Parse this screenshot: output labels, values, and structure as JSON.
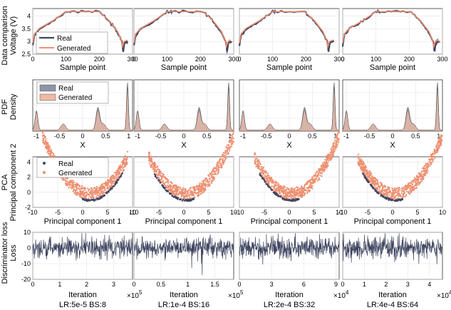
{
  "colors": {
    "real": "#3f4560",
    "generated": "#ee8f70",
    "grid": "#e3e3e3",
    "axis": "#333333",
    "real_fill": "#8e93a8",
    "gen_fill": "#efb9a3"
  },
  "rows": [
    {
      "key": "data",
      "row_title": "Data comparison",
      "ylabel": "Voltage (V)",
      "xlabel": "Sample point",
      "xticks": [
        "0",
        "100",
        "200",
        "300"
      ],
      "yticks": [
        "2.5",
        "3",
        "3.5",
        "4"
      ],
      "legend": [
        "Real",
        "Generated"
      ],
      "xlim": [
        0,
        300
      ],
      "ylim": [
        2.5,
        4.3
      ]
    },
    {
      "key": "pdf",
      "row_title": "PDF",
      "ylabel": "Density",
      "xlabel": "X",
      "xticks": [
        "-1",
        "-0.5",
        "0",
        "0.5",
        "1"
      ],
      "legend": [
        "Real",
        "Generated"
      ],
      "xlim": [
        -1.08,
        1.08
      ]
    },
    {
      "key": "pca",
      "row_title": "PCA",
      "ylabel": "Principal component 2",
      "xlabel": "Principal component 1",
      "xticks": [
        "-10",
        "-5",
        "0",
        "5",
        "10"
      ],
      "yticks": [
        "-2",
        "0",
        "2",
        "4"
      ],
      "legend": [
        "Real",
        "Generated"
      ],
      "xlim": [
        -10,
        10
      ],
      "ylim": [
        -2,
        4.7
      ]
    },
    {
      "key": "loss",
      "row_title": "Discriminator loss",
      "ylabel": "Loss",
      "xlabel": "Iteration",
      "yticks": [
        "-20",
        "-10",
        "0",
        "10"
      ],
      "ylim": [
        -20,
        10
      ]
    }
  ],
  "columns": [
    {
      "label": "LR:5e-5 BS:8",
      "loss_xticks": [
        "0",
        "1",
        "2",
        "3"
      ],
      "loss_xmax": 3.7,
      "loss_exp_base": "×10",
      "loss_exp_power": "5"
    },
    {
      "label": "LR:1e-4 BS:16",
      "loss_xticks": [
        "0",
        "0.5",
        "1",
        "1.5"
      ],
      "loss_xmax": 1.85,
      "loss_exp_base": "×10",
      "loss_exp_power": "5"
    },
    {
      "label": "LR:2e-4 BS:32",
      "loss_xticks": [
        "0",
        "3",
        "6",
        "9"
      ],
      "loss_xmax": 9.3,
      "loss_exp_base": "×10",
      "loss_exp_power": "4"
    },
    {
      "label": "LR:4e-4 BS:64",
      "loss_xticks": [
        "0",
        "1",
        "2",
        "3",
        "4"
      ],
      "loss_xmax": 4.6,
      "loss_exp_base": "×10",
      "loss_exp_power": "4"
    }
  ],
  "chart_data": [
    {
      "type": "line",
      "title": "Data comparison",
      "xlabel": "Sample point",
      "ylabel": "Voltage (V)",
      "xlim": [
        0,
        300
      ],
      "ylim": [
        2.5,
        4.3
      ],
      "series": [
        {
          "name": "Real",
          "x": [
            0,
            5,
            20,
            60,
            100,
            115,
            200,
            230,
            255,
            268,
            272,
            276,
            285
          ],
          "y": [
            2.85,
            3.25,
            3.5,
            3.8,
            4.18,
            4.18,
            4.18,
            3.8,
            3.35,
            3.0,
            2.6,
            2.95,
            3.0
          ]
        },
        {
          "name": "Generated",
          "x": [
            0,
            5,
            20,
            60,
            100,
            115,
            200,
            230,
            255,
            265,
            270,
            275,
            285
          ],
          "y": [
            2.95,
            3.3,
            3.52,
            3.82,
            4.18,
            4.18,
            4.18,
            3.82,
            3.4,
            3.1,
            2.8,
            3.0,
            3.05
          ]
        }
      ]
    },
    {
      "type": "area",
      "title": "PDF",
      "xlabel": "X",
      "ylabel": "Density",
      "xlim": [
        -1.08,
        1.08
      ],
      "peaks": [
        {
          "x": -1.0,
          "height": 0.38,
          "width": 0.03
        },
        {
          "x": -0.42,
          "height": 0.12,
          "width": 0.05
        },
        {
          "x": 0.33,
          "height": 0.4,
          "width": 0.04
        },
        {
          "x": 0.45,
          "height": 0.12,
          "width": 0.05
        },
        {
          "x": 0.97,
          "height": 0.93,
          "width": 0.02
        }
      ],
      "series": [
        {
          "name": "Real"
        },
        {
          "name": "Generated"
        }
      ]
    },
    {
      "type": "scatter",
      "title": "PCA",
      "xlabel": "Principal component 1",
      "ylabel": "Principal component 2",
      "xlim": [
        -10,
        10
      ],
      "ylim": [
        -2,
        4.7
      ],
      "series": [
        {
          "name": "Real",
          "description_curve": "y = 0.085*(x-1.5)^2 - 1.2, real points on lower edge"
        },
        {
          "name": "Generated",
          "curve": {
            "a": 0.085,
            "x0": 1.5,
            "y0": -1.0,
            "x_range": [
              -8,
              9
            ]
          }
        }
      ]
    },
    {
      "type": "line",
      "title": "Discriminator loss",
      "xlabel": "Iteration",
      "ylabel": "Loss",
      "ylim": [
        -20,
        10
      ],
      "series": [
        {
          "name": "Loss",
          "mean": 0,
          "spread": 5
        }
      ]
    }
  ]
}
